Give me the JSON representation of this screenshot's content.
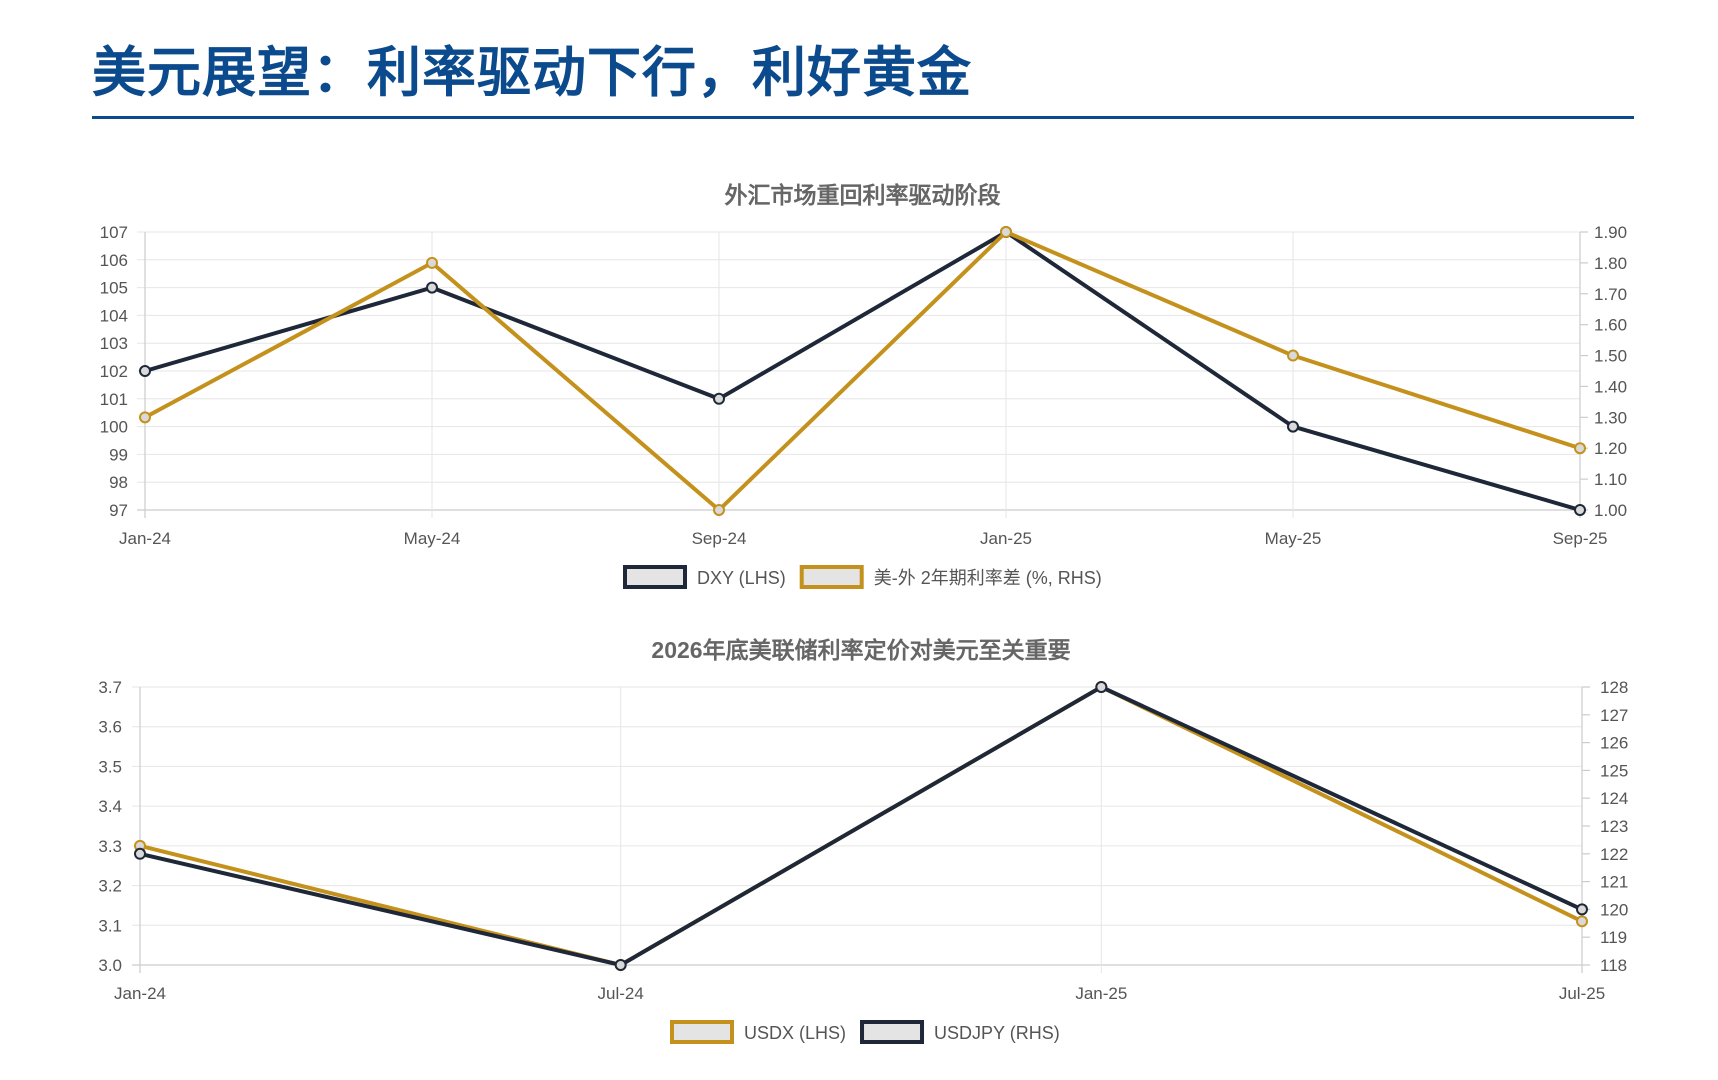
{
  "page": {
    "title": "美元展望：利率驱动下行，利好黄金"
  },
  "colors": {
    "navy": "#1e2838",
    "gold": "#c4921c",
    "title_blue": "#0b4a8c",
    "legend_fill": "#e4e4e4"
  },
  "chart_data": [
    {
      "type": "line",
      "title": "外汇市场重回利率驱动阶段",
      "categories": [
        "Jan-24",
        "May-24",
        "Sep-24",
        "Jan-25",
        "May-25",
        "Sep-25"
      ],
      "y_left": {
        "min": 97,
        "max": 107,
        "step": 1,
        "decimals": 0
      },
      "y_right": {
        "min": 1.0,
        "max": 1.9,
        "step": 0.1,
        "decimals": 2
      },
      "grid": true,
      "legend_position": "bottom",
      "series": [
        {
          "name": "DXY (LHS)",
          "axis": "left",
          "color": "#1e2838",
          "values": [
            102,
            105,
            101,
            107,
            100,
            97
          ]
        },
        {
          "name": "美-外 2年期利率差 (%, RHS)",
          "axis": "right",
          "color": "#c4921c",
          "values": [
            1.3,
            1.8,
            1.0,
            1.9,
            1.5,
            1.2
          ]
        }
      ]
    },
    {
      "type": "line",
      "title": "2026年底美联储利率定价对美元至关重要",
      "categories": [
        "Jan-24",
        "Jul-24",
        "Jan-25",
        "Jul-25"
      ],
      "y_left": {
        "min": 3.0,
        "max": 3.7,
        "step": 0.1,
        "decimals": 1
      },
      "y_right": {
        "min": 118,
        "max": 128,
        "step": 1,
        "decimals": 0
      },
      "grid": true,
      "legend_position": "bottom",
      "series": [
        {
          "name": "USDX (LHS)",
          "axis": "left",
          "color": "#c4921c",
          "values": [
            3.3,
            3.0,
            3.7,
            3.11
          ]
        },
        {
          "name": "USDJPY (RHS)",
          "axis": "right",
          "color": "#1e2838",
          "values": [
            122,
            118,
            128,
            120
          ]
        }
      ]
    }
  ]
}
